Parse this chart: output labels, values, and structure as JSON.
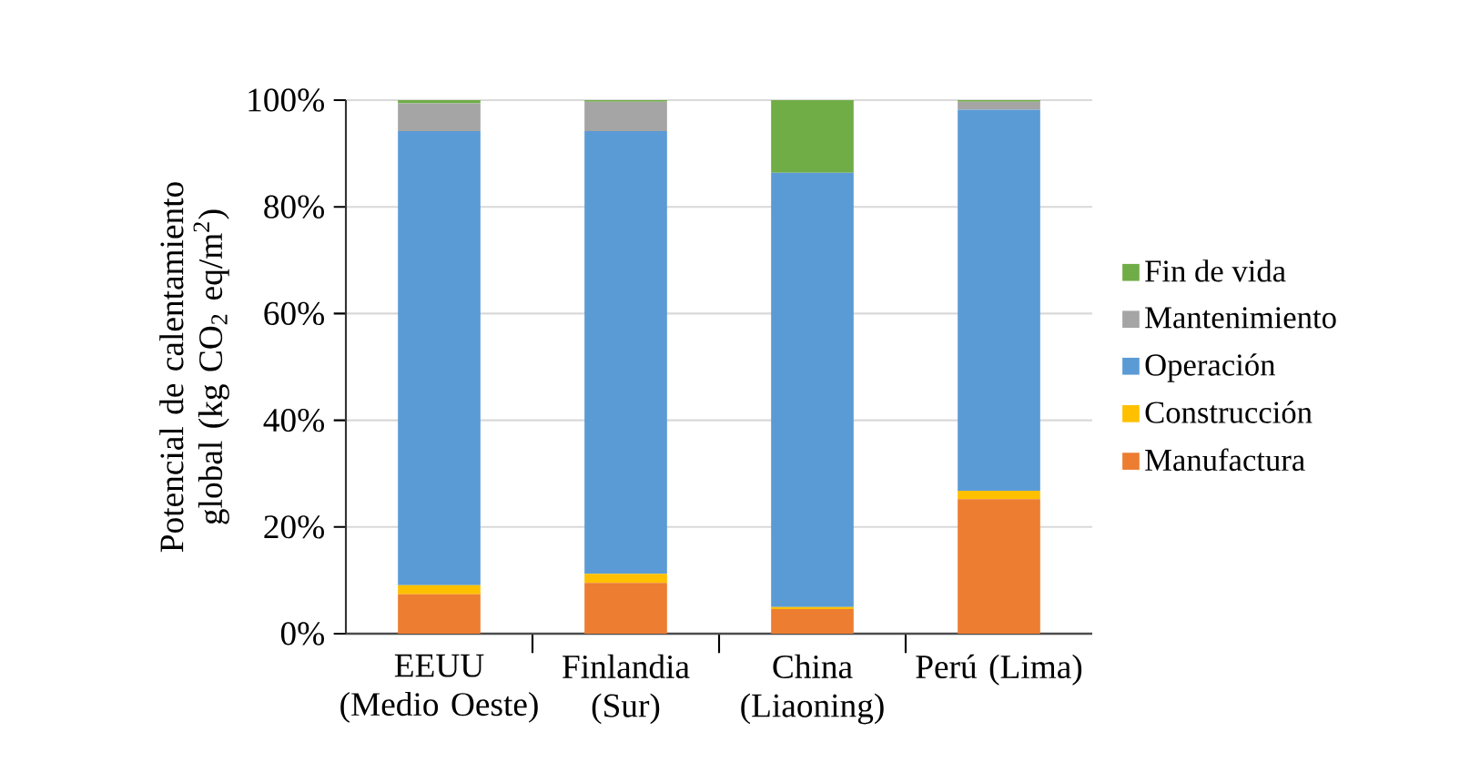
{
  "chart_data": {
    "type": "bar",
    "stacked": true,
    "ylabel": "Potencial de calentamiento global (kg CO$_{2}$ eq/m$^{2}$)",
    "categories": [
      "EEUU (Medio Oeste)",
      "Finlandia (Sur)",
      "China (Liaoning)",
      "Perú (Lima)"
    ],
    "series": [
      {
        "name": "Manufactura",
        "color": "#ed7d31",
        "values": [
          7.4,
          9.5,
          4.6,
          25.2
        ]
      },
      {
        "name": "Construcción",
        "color": "#ffc000",
        "values": [
          1.7,
          1.7,
          0.4,
          1.6
        ]
      },
      {
        "name": "Operación",
        "color": "#5b9bd5",
        "values": [
          85.1,
          83.0,
          81.4,
          71.4
        ]
      },
      {
        "name": "Mantenimiento",
        "color": "#a5a5a5",
        "values": [
          5.2,
          5.5,
          0,
          1.5
        ]
      },
      {
        "name": "Fin de vida",
        "color": "#70ad47",
        "values": [
          0.6,
          0.3,
          13.6,
          0.3
        ]
      }
    ],
    "ylim": [
      0,
      100
    ],
    "yticks": [
      {
        "value": 0,
        "label": "0%"
      },
      {
        "value": 20,
        "label": "20%"
      },
      {
        "value": 40,
        "label": "40%"
      },
      {
        "value": 60,
        "label": "60%"
      },
      {
        "value": 80,
        "label": "80%"
      },
      {
        "value": 100,
        "label": "100%"
      }
    ],
    "grid": "y",
    "legend": "right"
  }
}
